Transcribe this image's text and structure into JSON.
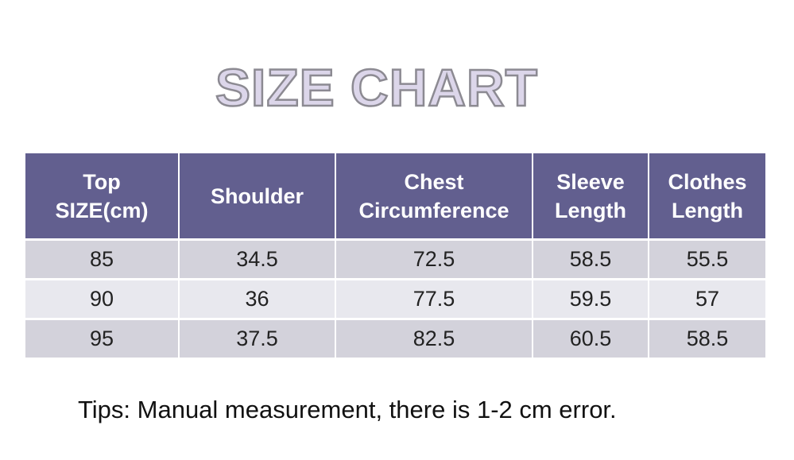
{
  "header": {
    "title": "SIZE CHART"
  },
  "table": {
    "columns": [
      "Top\nSIZE(cm)",
      "Shoulder",
      "Chest\nCircumference",
      "Sleeve\nLength",
      "Clothes\nLength"
    ],
    "rows": [
      [
        "85",
        "34.5",
        "72.5",
        "58.5",
        "55.5"
      ],
      [
        "90",
        "36",
        "77.5",
        "59.5",
        "57"
      ],
      [
        "95",
        "37.5",
        "82.5",
        "60.5",
        "58.5"
      ]
    ]
  },
  "footer": {
    "tips": "Tips: Manual measurement, there is 1-2 cm error."
  }
}
